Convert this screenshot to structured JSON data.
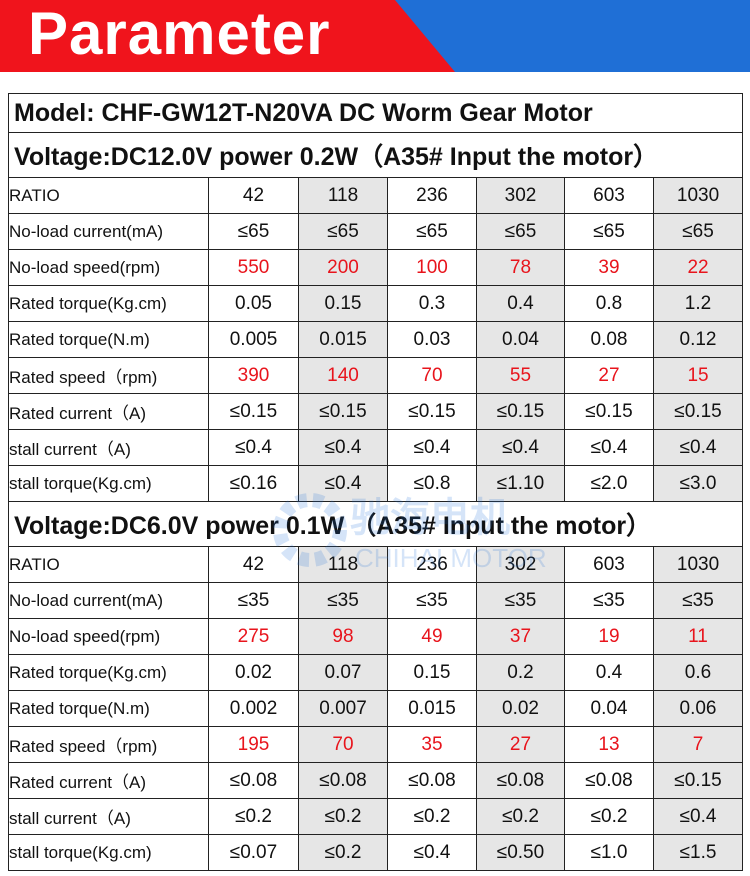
{
  "header": {
    "title": "Parameter"
  },
  "model": "Model: CHF-GW12T-N20VA  DC Worm Gear Motor",
  "watermark": {
    "name": "驰海电机",
    "brand": "CHIHAI MOTOR"
  },
  "highlight_color": "#e8141c",
  "sections": [
    {
      "voltage": "Voltage:DC12.0V   power 0.2W（A35# Input the motor）",
      "rows": [
        {
          "label": "RATIO",
          "values": [
            "42",
            "118",
            "236",
            "302",
            "603",
            "1030"
          ]
        },
        {
          "label": "No-load current(mA)",
          "values": [
            "≤65",
            "≤65",
            "≤65",
            "≤65",
            "≤65",
            "≤65"
          ]
        },
        {
          "label": "No-load speed(rpm)",
          "highlight": true,
          "values": [
            "550",
            "200",
            "100",
            "78",
            "39",
            "22"
          ]
        },
        {
          "label": "Rated torque(Kg.cm)",
          "values": [
            "0.05",
            "0.15",
            "0.3",
            "0.4",
            "0.8",
            "1.2"
          ]
        },
        {
          "label": "Rated torque(N.m)",
          "values": [
            "0.005",
            "0.015",
            "0.03",
            "0.04",
            "0.08",
            "0.12"
          ]
        },
        {
          "label": "Rated speed（rpm)",
          "highlight": true,
          "values": [
            "390",
            "140",
            "70",
            "55",
            "27",
            "15"
          ]
        },
        {
          "label": "Rated current（A)",
          "values": [
            "≤0.15",
            "≤0.15",
            "≤0.15",
            "≤0.15",
            "≤0.15",
            "≤0.15"
          ]
        },
        {
          "label": "stall current（A)",
          "values": [
            "≤0.4",
            "≤0.4",
            "≤0.4",
            "≤0.4",
            "≤0.4",
            "≤0.4"
          ]
        },
        {
          "label": "stall torque(Kg.cm)",
          "values": [
            "≤0.16",
            "≤0.4",
            "≤0.8",
            "≤1.10",
            "≤2.0",
            "≤3.0"
          ]
        }
      ]
    },
    {
      "voltage": "Voltage:DC6.0V   power 0.1W  （A35# Input the motor）",
      "rows": [
        {
          "label": "RATIO",
          "values": [
            "42",
            "118",
            "236",
            "302",
            "603",
            "1030"
          ]
        },
        {
          "label": "No-load current(mA)",
          "values": [
            "≤35",
            "≤35",
            "≤35",
            "≤35",
            "≤35",
            "≤35"
          ]
        },
        {
          "label": "No-load speed(rpm)",
          "highlight": true,
          "values": [
            "275",
            "98",
            "49",
            "37",
            "19",
            "11"
          ]
        },
        {
          "label": "Rated torque(Kg.cm)",
          "values": [
            "0.02",
            "0.07",
            "0.15",
            "0.2",
            "0.4",
            "0.6"
          ]
        },
        {
          "label": "Rated torque(N.m)",
          "values": [
            "0.002",
            "0.007",
            "0.015",
            "0.02",
            "0.04",
            "0.06"
          ]
        },
        {
          "label": "Rated speed（rpm)",
          "highlight": true,
          "values": [
            "195",
            "70",
            "35",
            "27",
            "13",
            "7"
          ]
        },
        {
          "label": "Rated current（A)",
          "values": [
            "≤0.08",
            "≤0.08",
            "≤0.08",
            "≤0.08",
            "≤0.08",
            "≤0.15"
          ]
        },
        {
          "label": "stall current（A)",
          "values": [
            "≤0.2",
            "≤0.2",
            "≤0.2",
            "≤0.2",
            "≤0.2",
            "≤0.4"
          ]
        },
        {
          "label": "stall torque(Kg.cm)",
          "values": [
            "≤0.07",
            "≤0.2",
            "≤0.4",
            "≤0.50",
            "≤1.0",
            "≤1.5"
          ]
        }
      ]
    }
  ]
}
